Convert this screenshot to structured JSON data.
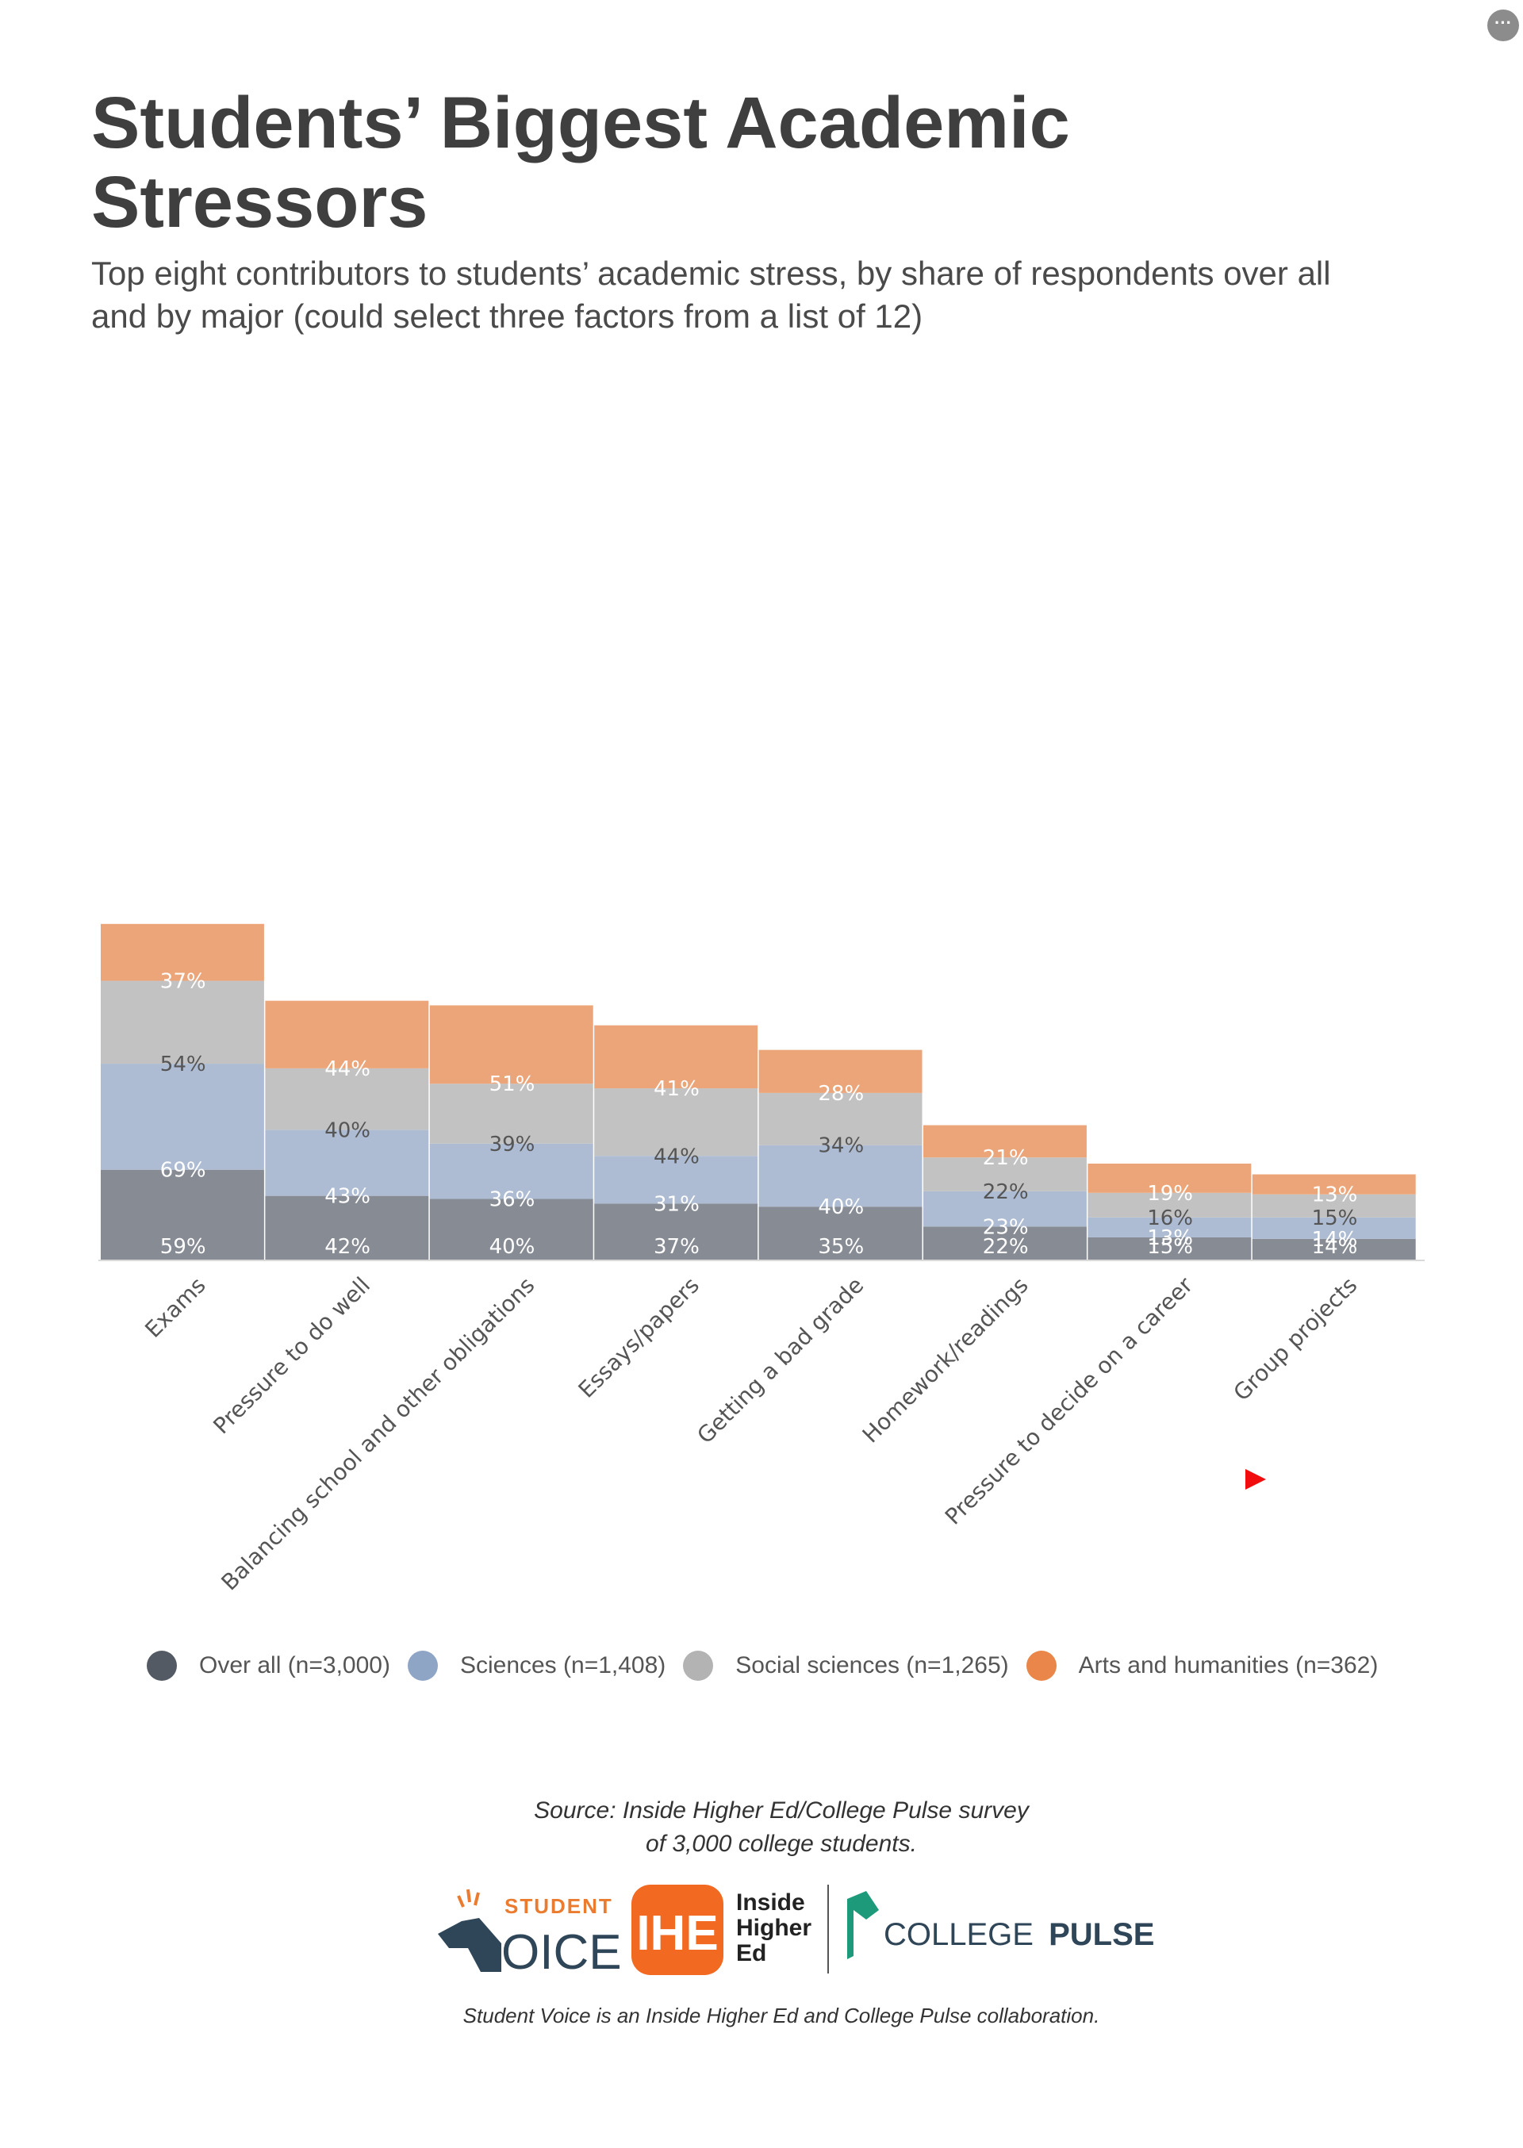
{
  "menu_icon": "more-horizontal-icon",
  "title": "Students’ Biggest Academic Stressors",
  "subtitle": "Top eight contributors to students’ academic stress, by share of respondents over all and by major (could select three factors from a list of 12)",
  "chart_data": {
    "type": "bar",
    "stacked": true,
    "categories": [
      "Exams",
      "Pressure to do well",
      "Balancing school and other obligations",
      "Essays/papers",
      "Getting a bad grade",
      "Homework/readings",
      "Pressure to decide on a career",
      "Group projects"
    ],
    "series": [
      {
        "name": "Over all (n=3,000)",
        "color": "#878c94",
        "values": [
          59,
          42,
          40,
          37,
          35,
          22,
          15,
          14
        ]
      },
      {
        "name": "Sciences (n=1,408)",
        "color": "#adbcd3",
        "values": [
          69,
          43,
          36,
          31,
          40,
          23,
          13,
          14
        ]
      },
      {
        "name": "Social sciences (n=1,265)",
        "color": "#c2c2c2",
        "values": [
          54,
          40,
          39,
          44,
          34,
          22,
          16,
          15
        ]
      },
      {
        "name": "Arts and humanities (n=362)",
        "color": "#eca578",
        "values": [
          37,
          44,
          51,
          41,
          28,
          21,
          19,
          13
        ]
      }
    ],
    "legend_position": "bottom",
    "grid": false,
    "value_labels": true
  },
  "legend_dot_colors": [
    "#535a63",
    "#8fa5c6",
    "#b3b3b3",
    "#ea8649"
  ],
  "source": {
    "line1": "Source: Inside Higher Ed/College Pulse survey",
    "line2": "of 3,000 college students."
  },
  "logos": {
    "student_voice_top": "STUDENT",
    "student_voice_bottom": "OICE",
    "ihe_mark": "IHE",
    "ihe_line1": "Inside",
    "ihe_line2": "Higher",
    "ihe_line3": "Ed",
    "college_pulse_1": "COLLEGE",
    "college_pulse_2": "PULSE"
  },
  "footer": "Student Voice is an Inside Higher Ed and College Pulse collaboration."
}
